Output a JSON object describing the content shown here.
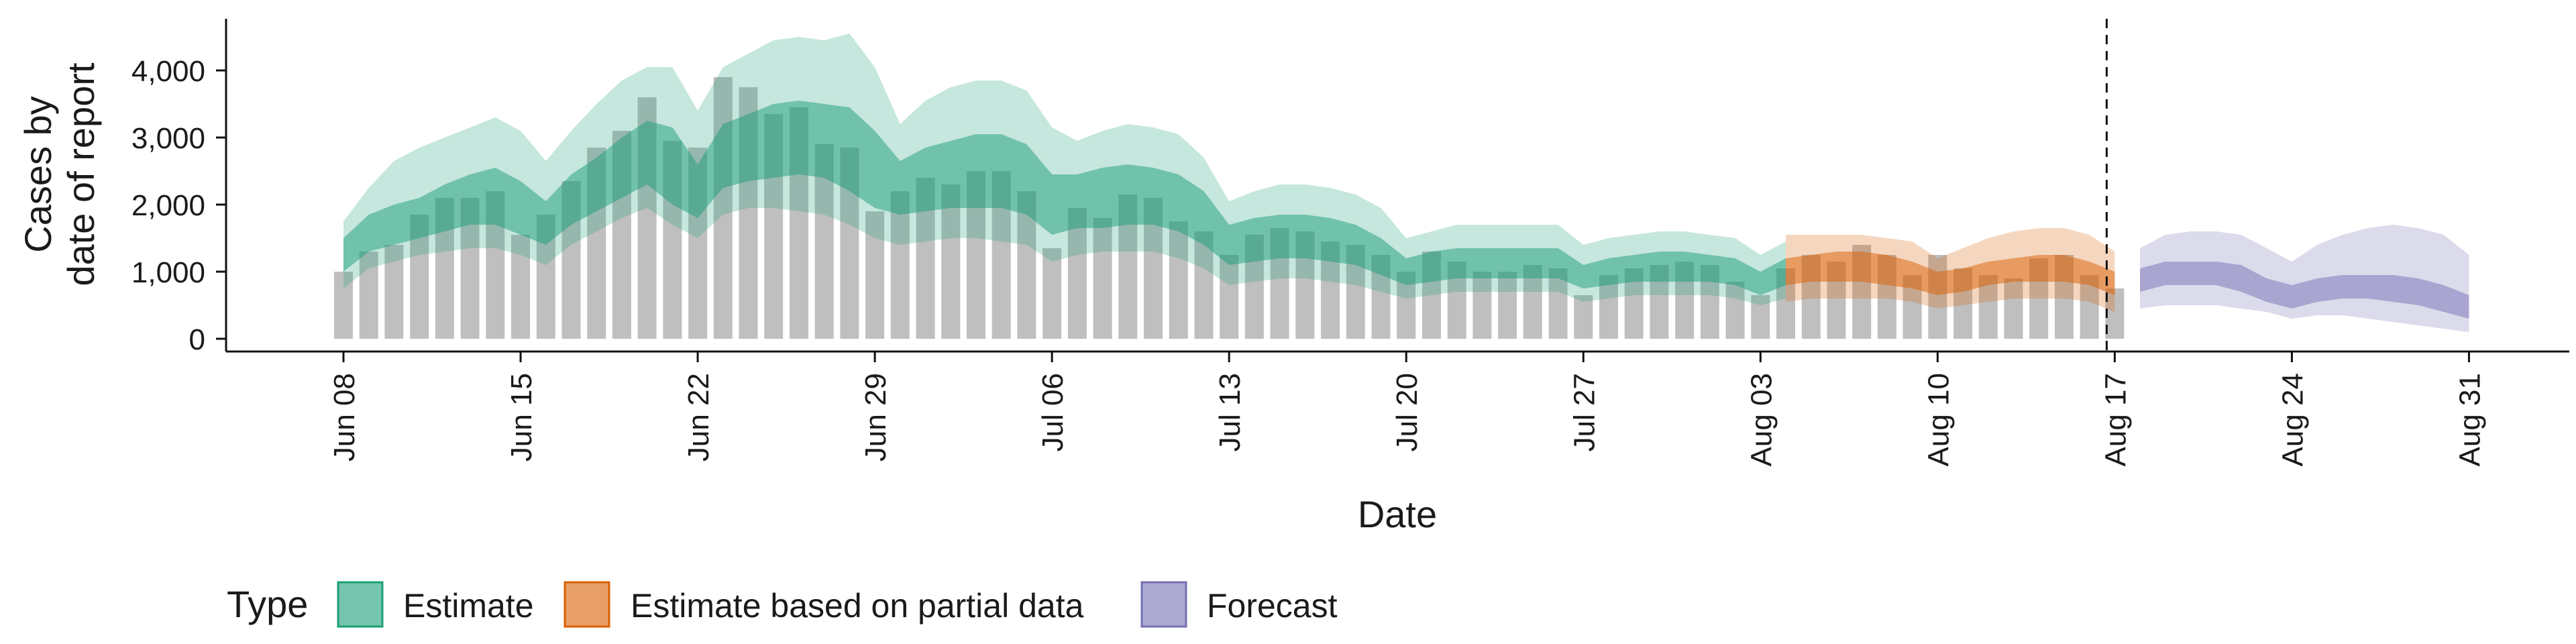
{
  "chart_data": {
    "type": "bar",
    "xlabel": "Date",
    "ylabel_lines": [
      "Cases by",
      "date of report"
    ],
    "ylim": [
      0,
      4500
    ],
    "yticks": [
      0,
      1000,
      2000,
      3000,
      4000
    ],
    "ytick_labels": [
      "0",
      "1,000",
      "2,000",
      "3,000",
      "4,000"
    ],
    "xticks": [
      "Jun 08",
      "Jun 15",
      "Jun 22",
      "Jun 29",
      "Jul 06",
      "Jul 13",
      "Jul 20",
      "Jul 27",
      "Aug 03",
      "Aug 10",
      "Aug 17",
      "Aug 24",
      "Aug 31"
    ],
    "forecast_date": "Aug 17",
    "legend": {
      "title": "Type",
      "position": "bottom",
      "entries": [
        {
          "label": "Estimate",
          "color": "#1b9e77"
        },
        {
          "label": "Estimate based on partial data",
          "color": "#d95f02"
        },
        {
          "label": "Forecast",
          "color": "#7570b3"
        }
      ]
    },
    "bars": {
      "color": "#a9a9a9",
      "start_date": "Jun 08",
      "values": [
        1000,
        1300,
        1400,
        1850,
        2100,
        2100,
        2200,
        1550,
        1850,
        2350,
        2850,
        3100,
        3600,
        2950,
        2850,
        3900,
        3750,
        3350,
        3450,
        2900,
        2850,
        1900,
        2200,
        2400,
        2300,
        2500,
        2500,
        2200,
        1350,
        1950,
        1800,
        2150,
        2100,
        1750,
        1600,
        1250,
        1550,
        1650,
        1600,
        1450,
        1400,
        1250,
        1000,
        1300,
        1150,
        1000,
        1000,
        1100,
        1050,
        650,
        950,
        1050,
        1100,
        1150,
        1100,
        850,
        650,
        1050,
        1250,
        1150,
        1400,
        1250,
        950,
        1250,
        1050,
        950,
        900,
        1200,
        1250,
        950,
        750
      ]
    },
    "series": [
      {
        "name": "Estimate",
        "color": "#1b9e77",
        "start_date": "Jun 08",
        "median": [
          1250,
          1550,
          1650,
          1750,
          1900,
          2000,
          2050,
          1850,
          1650,
          1950,
          2200,
          2450,
          2650,
          2300,
          2050,
          2600,
          2800,
          2950,
          3050,
          3000,
          2800,
          2500,
          2300,
          2350,
          2450,
          2500,
          2450,
          2350,
          1950,
          2050,
          2050,
          2100,
          2100,
          2000,
          1750,
          1400,
          1450,
          1500,
          1500,
          1450,
          1350,
          1200,
          1000,
          1050,
          1150,
          1150,
          1150,
          1150,
          1150,
          950,
          1000,
          1050,
          1100,
          1100,
          1050,
          1000,
          850,
          1000
        ],
        "lower90": [
          750,
          1050,
          1150,
          1250,
          1300,
          1350,
          1350,
          1250,
          1100,
          1400,
          1600,
          1800,
          1950,
          1700,
          1500,
          1850,
          1950,
          1950,
          1900,
          1850,
          1700,
          1500,
          1400,
          1450,
          1500,
          1500,
          1450,
          1400,
          1150,
          1250,
          1300,
          1300,
          1300,
          1200,
          1050,
          800,
          850,
          900,
          900,
          850,
          800,
          700,
          600,
          650,
          700,
          700,
          700,
          700,
          700,
          550,
          600,
          650,
          650,
          650,
          650,
          600,
          500,
          600
        ],
        "upper90": [
          1750,
          2250,
          2650,
          2850,
          3000,
          3150,
          3300,
          3100,
          2650,
          3100,
          3500,
          3850,
          4050,
          4050,
          3400,
          4050,
          4250,
          4450,
          4500,
          4450,
          4550,
          4050,
          3200,
          3550,
          3750,
          3850,
          3850,
          3700,
          3150,
          2950,
          3100,
          3200,
          3150,
          3050,
          2700,
          2050,
          2200,
          2300,
          2300,
          2250,
          2150,
          1950,
          1500,
          1600,
          1700,
          1700,
          1700,
          1700,
          1700,
          1400,
          1500,
          1550,
          1600,
          1600,
          1550,
          1500,
          1250,
          1450
        ],
        "lower50": [
          1000,
          1300,
          1400,
          1500,
          1600,
          1700,
          1700,
          1550,
          1400,
          1700,
          1900,
          2100,
          2300,
          2000,
          1800,
          2250,
          2350,
          2400,
          2450,
          2400,
          2200,
          1950,
          1850,
          1900,
          1950,
          1950,
          1950,
          1850,
          1550,
          1650,
          1650,
          1700,
          1700,
          1600,
          1400,
          1100,
          1150,
          1200,
          1200,
          1150,
          1100,
          950,
          800,
          850,
          900,
          900,
          900,
          900,
          900,
          750,
          800,
          850,
          850,
          850,
          850,
          800,
          650,
          800
        ],
        "upper50": [
          1500,
          1850,
          2000,
          2100,
          2300,
          2450,
          2550,
          2350,
          2050,
          2450,
          2700,
          3000,
          3250,
          3150,
          2600,
          3200,
          3350,
          3500,
          3550,
          3500,
          3450,
          3100,
          2650,
          2850,
          2950,
          3050,
          3050,
          2900,
          2450,
          2450,
          2550,
          2600,
          2550,
          2450,
          2200,
          1700,
          1800,
          1850,
          1850,
          1800,
          1700,
          1500,
          1200,
          1300,
          1350,
          1350,
          1350,
          1350,
          1350,
          1100,
          1200,
          1250,
          1300,
          1300,
          1250,
          1200,
          1000,
          1200
        ]
      },
      {
        "name": "Estimate based on partial data",
        "color": "#d95f02",
        "start_date": "Aug 04",
        "median": [
          1000,
          1050,
          1050,
          1050,
          1000,
          900,
          800,
          850,
          950,
          1000,
          1050,
          1050,
          1000,
          850
        ],
        "lower90": [
          550,
          600,
          600,
          600,
          600,
          550,
          450,
          500,
          550,
          600,
          600,
          600,
          550,
          400
        ],
        "upper90": [
          1550,
          1550,
          1550,
          1550,
          1500,
          1450,
          1200,
          1350,
          1500,
          1600,
          1650,
          1650,
          1550,
          1300
        ],
        "lower50": [
          800,
          850,
          850,
          850,
          800,
          750,
          650,
          700,
          800,
          850,
          850,
          850,
          800,
          650
        ],
        "upper50": [
          1200,
          1250,
          1300,
          1300,
          1250,
          1150,
          1000,
          1050,
          1150,
          1200,
          1250,
          1250,
          1150,
          1000
        ]
      },
      {
        "name": "Forecast",
        "color": "#7570b3",
        "start_date": "Aug 18",
        "median": [
          850,
          1000,
          950,
          950,
          900,
          750,
          650,
          800,
          850,
          850,
          800,
          700,
          600,
          500
        ],
        "lower90": [
          450,
          500,
          500,
          500,
          450,
          400,
          300,
          350,
          350,
          300,
          250,
          200,
          150,
          100
        ],
        "upper90": [
          1350,
          1550,
          1600,
          1600,
          1550,
          1350,
          1150,
          1400,
          1550,
          1650,
          1700,
          1650,
          1550,
          1250
        ],
        "lower50": [
          700,
          800,
          800,
          800,
          700,
          550,
          450,
          550,
          600,
          600,
          550,
          500,
          400,
          300
        ],
        "upper50": [
          1050,
          1150,
          1150,
          1150,
          1100,
          900,
          800,
          900,
          950,
          950,
          950,
          900,
          800,
          650
        ]
      }
    ]
  }
}
